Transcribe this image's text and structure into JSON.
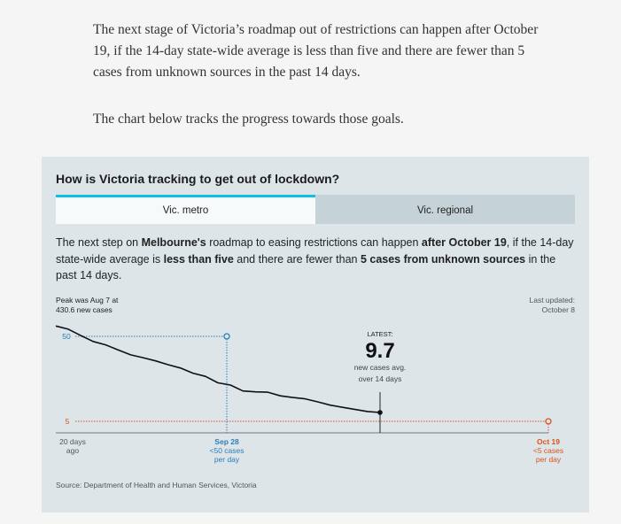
{
  "intro": {
    "p1": "The next stage of Victoria’s roadmap out of restrictions can happen after October 19, if the 14-day state-wide average is less than five and there are fewer than 5 cases from unknown sources in the past 14 days.",
    "p2": "The chart below tracks the progress towards those goals."
  },
  "card": {
    "title": "How is Victoria tracking to get out of lockdown?",
    "tabs": [
      {
        "label": "Vic. metro",
        "active": true
      },
      {
        "label": "Vic. regional",
        "active": false
      }
    ],
    "desc": {
      "t1": "The next step on ",
      "b1": "Melbourne's",
      "t2": " roadmap to easing restrictions can happen ",
      "b2": "after October 19",
      "t3": ", if the 14-day state-wide average is ",
      "b3": "less than five",
      "t4": " and there are fewer than ",
      "b4": "5 cases from unknown sources",
      "t5": " in the past 14 days."
    },
    "peak": {
      "line1": "Peak was Aug 7 at",
      "line2": "430.6 new cases"
    },
    "updated": {
      "line1": "Last updated:",
      "line2": "October 8"
    },
    "source": "Source: Department of Health and Human Services, Victoria"
  },
  "chart_data": {
    "type": "line",
    "series": [
      {
        "values": [
          55.5,
          53.8,
          50.4,
          47.3,
          45.5,
          42.8,
          40.2,
          38.7,
          37.0,
          35.0,
          33.2,
          30.5,
          28.8,
          25.4,
          24.2,
          21.1,
          20.6,
          20.4,
          18.5,
          17.6,
          16.9,
          15.3,
          13.6,
          12.4,
          11.3,
          10.2,
          9.7
        ]
      }
    ],
    "ylim": [
      0,
      60
    ],
    "colors": {
      "line": "#111111",
      "target50": "#2b7fb8",
      "target5": "#d9531e"
    },
    "targets": [
      {
        "value": 50,
        "label": "50",
        "date": "Sep 28",
        "sub1": "<50 cases",
        "sub2": "per day"
      },
      {
        "value": 5,
        "label": "5",
        "date": "Oct 19",
        "sub1": "<5 cases",
        "sub2": "per day"
      }
    ],
    "x_start": {
      "line1": "20 days",
      "line2": "ago"
    },
    "latest": {
      "label": "LATEST:",
      "value": "9.7",
      "sub1": "new cases avg.",
      "sub2": "over 14 days"
    }
  }
}
